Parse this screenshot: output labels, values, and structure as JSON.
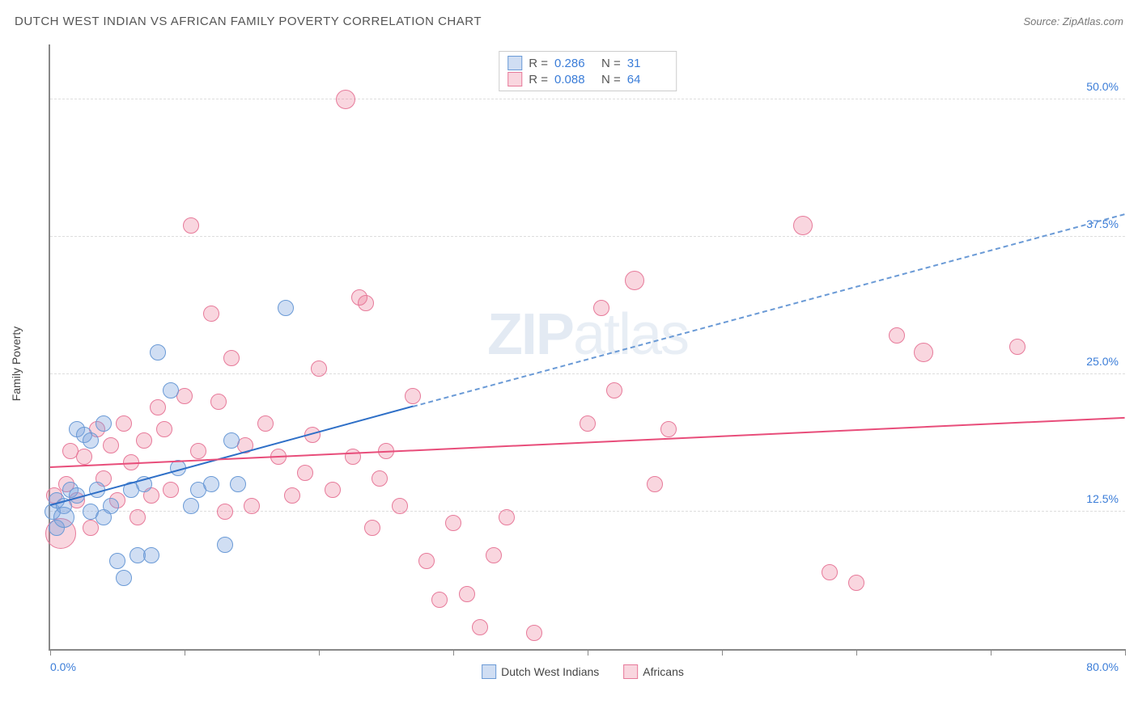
{
  "header": {
    "title": "DUTCH WEST INDIAN VS AFRICAN FAMILY POVERTY CORRELATION CHART",
    "source_prefix": "Source: ",
    "source": "ZipAtlas.com"
  },
  "watermark": {
    "zip": "ZIP",
    "atlas": "atlas"
  },
  "chart": {
    "type": "scatter",
    "ylabel": "Family Poverty",
    "xlim": [
      0,
      80
    ],
    "ylim": [
      0,
      55
    ],
    "xtick_positions": [
      0,
      10,
      20,
      30,
      40,
      50,
      60,
      70,
      80
    ],
    "xtick_labels": {
      "left": "0.0%",
      "right": "80.0%"
    },
    "ytick_positions": [
      12.5,
      25.0,
      37.5,
      50.0
    ],
    "ytick_labels": [
      "12.5%",
      "25.0%",
      "37.5%",
      "50.0%"
    ],
    "grid_color": "#dddddd",
    "axis_color": "#888888",
    "background_color": "#ffffff",
    "tick_label_color": "#3b7dd8",
    "ylabel_color": "#444444"
  },
  "series": [
    {
      "name": "Dutch West Indians",
      "fill": "rgba(120,160,220,0.35)",
      "stroke": "#6a9ad6",
      "trend_color": "#2e6fc7",
      "trend_dash_color": "#6a9ad6",
      "R": "0.286",
      "N": "31",
      "marker_radius": 9,
      "trend": {
        "x1": 0,
        "y1": 13.0,
        "x2_solid": 27,
        "y2_solid": 22.0,
        "x2": 80,
        "y2": 39.5
      },
      "points": [
        {
          "x": 0.2,
          "y": 12.5,
          "r": 9
        },
        {
          "x": 0.5,
          "y": 13.5,
          "r": 9
        },
        {
          "x": 0.5,
          "y": 11.0,
          "r": 9
        },
        {
          "x": 1.0,
          "y": 13.0,
          "r": 9
        },
        {
          "x": 1.0,
          "y": 12.0,
          "r": 12
        },
        {
          "x": 1.5,
          "y": 14.5,
          "r": 9
        },
        {
          "x": 2.0,
          "y": 20.0,
          "r": 9
        },
        {
          "x": 2.5,
          "y": 19.5,
          "r": 9
        },
        {
          "x": 2.0,
          "y": 14.0,
          "r": 9
        },
        {
          "x": 3.0,
          "y": 12.5,
          "r": 9
        },
        {
          "x": 3.0,
          "y": 19.0,
          "r": 9
        },
        {
          "x": 3.5,
          "y": 14.5,
          "r": 9
        },
        {
          "x": 4.0,
          "y": 20.5,
          "r": 9
        },
        {
          "x": 4.5,
          "y": 13.0,
          "r": 9
        },
        {
          "x": 5.0,
          "y": 8.0,
          "r": 9
        },
        {
          "x": 5.5,
          "y": 6.5,
          "r": 9
        },
        {
          "x": 6.0,
          "y": 14.5,
          "r": 9
        },
        {
          "x": 6.5,
          "y": 8.5,
          "r": 9
        },
        {
          "x": 7.0,
          "y": 15.0,
          "r": 9
        },
        {
          "x": 7.5,
          "y": 8.5,
          "r": 9
        },
        {
          "x": 8.0,
          "y": 27.0,
          "r": 9
        },
        {
          "x": 9.0,
          "y": 23.5,
          "r": 9
        },
        {
          "x": 9.5,
          "y": 16.5,
          "r": 9
        },
        {
          "x": 11.0,
          "y": 14.5,
          "r": 9
        },
        {
          "x": 12.0,
          "y": 15.0,
          "r": 9
        },
        {
          "x": 13.0,
          "y": 9.5,
          "r": 9
        },
        {
          "x": 13.5,
          "y": 19.0,
          "r": 9
        },
        {
          "x": 14.0,
          "y": 15.0,
          "r": 9
        },
        {
          "x": 17.5,
          "y": 31.0,
          "r": 9
        },
        {
          "x": 10.5,
          "y": 13.0,
          "r": 9
        },
        {
          "x": 4.0,
          "y": 12.0,
          "r": 9
        }
      ]
    },
    {
      "name": "Africans",
      "fill": "rgba(235,120,150,0.3)",
      "stroke": "#e77a9a",
      "trend_color": "#e84d7a",
      "R": "0.088",
      "N": "64",
      "marker_radius": 9,
      "trend": {
        "x1": 0,
        "y1": 16.5,
        "x2_solid": 80,
        "y2_solid": 21.0,
        "x2": 80,
        "y2": 21.0
      },
      "points": [
        {
          "x": 0.3,
          "y": 14.0,
          "r": 9
        },
        {
          "x": 0.8,
          "y": 10.5,
          "r": 18
        },
        {
          "x": 1.2,
          "y": 15.0,
          "r": 9
        },
        {
          "x": 1.5,
          "y": 18.0,
          "r": 9
        },
        {
          "x": 2.0,
          "y": 13.5,
          "r": 9
        },
        {
          "x": 2.5,
          "y": 17.5,
          "r": 9
        },
        {
          "x": 3.0,
          "y": 11.0,
          "r": 9
        },
        {
          "x": 3.5,
          "y": 20.0,
          "r": 9
        },
        {
          "x": 4.0,
          "y": 15.5,
          "r": 9
        },
        {
          "x": 4.5,
          "y": 18.5,
          "r": 9
        },
        {
          "x": 5.0,
          "y": 13.5,
          "r": 9
        },
        {
          "x": 5.5,
          "y": 20.5,
          "r": 9
        },
        {
          "x": 6.0,
          "y": 17.0,
          "r": 9
        },
        {
          "x": 6.5,
          "y": 12.0,
          "r": 9
        },
        {
          "x": 7.0,
          "y": 19.0,
          "r": 9
        },
        {
          "x": 7.5,
          "y": 14.0,
          "r": 9
        },
        {
          "x": 8.0,
          "y": 22.0,
          "r": 9
        },
        {
          "x": 8.5,
          "y": 20.0,
          "r": 9
        },
        {
          "x": 9.0,
          "y": 14.5,
          "r": 9
        },
        {
          "x": 10.0,
          "y": 23.0,
          "r": 9
        },
        {
          "x": 10.5,
          "y": 38.5,
          "r": 9
        },
        {
          "x": 11.0,
          "y": 18.0,
          "r": 9
        },
        {
          "x": 12.0,
          "y": 30.5,
          "r": 9
        },
        {
          "x": 13.0,
          "y": 12.5,
          "r": 9
        },
        {
          "x": 13.5,
          "y": 26.5,
          "r": 9
        },
        {
          "x": 14.5,
          "y": 18.5,
          "r": 9
        },
        {
          "x": 15.0,
          "y": 13.0,
          "r": 9
        },
        {
          "x": 16.0,
          "y": 20.5,
          "r": 9
        },
        {
          "x": 17.0,
          "y": 17.5,
          "r": 9
        },
        {
          "x": 18.0,
          "y": 14.0,
          "r": 9
        },
        {
          "x": 19.0,
          "y": 16.0,
          "r": 9
        },
        {
          "x": 19.5,
          "y": 19.5,
          "r": 9
        },
        {
          "x": 20.0,
          "y": 25.5,
          "r": 9
        },
        {
          "x": 21.0,
          "y": 14.5,
          "r": 9
        },
        {
          "x": 22.0,
          "y": 50.0,
          "r": 11
        },
        {
          "x": 22.5,
          "y": 17.5,
          "r": 9
        },
        {
          "x": 23.0,
          "y": 32.0,
          "r": 9
        },
        {
          "x": 23.5,
          "y": 31.5,
          "r": 9
        },
        {
          "x": 24.0,
          "y": 11.0,
          "r": 9
        },
        {
          "x": 24.5,
          "y": 15.5,
          "r": 9
        },
        {
          "x": 25.0,
          "y": 18.0,
          "r": 9
        },
        {
          "x": 26.0,
          "y": 13.0,
          "r": 9
        },
        {
          "x": 27.0,
          "y": 23.0,
          "r": 9
        },
        {
          "x": 28.0,
          "y": 8.0,
          "r": 9
        },
        {
          "x": 29.0,
          "y": 4.5,
          "r": 9
        },
        {
          "x": 30.0,
          "y": 11.5,
          "r": 9
        },
        {
          "x": 31.0,
          "y": 5.0,
          "r": 9
        },
        {
          "x": 32.0,
          "y": 2.0,
          "r": 9
        },
        {
          "x": 33.0,
          "y": 8.5,
          "r": 9
        },
        {
          "x": 34.0,
          "y": 12.0,
          "r": 9
        },
        {
          "x": 36.0,
          "y": 1.5,
          "r": 9
        },
        {
          "x": 40.0,
          "y": 20.5,
          "r": 9
        },
        {
          "x": 41.0,
          "y": 31.0,
          "r": 9
        },
        {
          "x": 42.0,
          "y": 23.5,
          "r": 9
        },
        {
          "x": 43.5,
          "y": 33.5,
          "r": 11
        },
        {
          "x": 45.0,
          "y": 15.0,
          "r": 9
        },
        {
          "x": 46.0,
          "y": 20.0,
          "r": 9
        },
        {
          "x": 56.0,
          "y": 38.5,
          "r": 11
        },
        {
          "x": 58.0,
          "y": 7.0,
          "r": 9
        },
        {
          "x": 60.0,
          "y": 6.0,
          "r": 9
        },
        {
          "x": 63.0,
          "y": 28.5,
          "r": 9
        },
        {
          "x": 65.0,
          "y": 27.0,
          "r": 11
        },
        {
          "x": 72.0,
          "y": 27.5,
          "r": 9
        },
        {
          "x": 12.5,
          "y": 22.5,
          "r": 9
        }
      ]
    }
  ],
  "stats_labels": {
    "R": "R =",
    "N": "N ="
  },
  "legend": {
    "s1": "Dutch West Indians",
    "s2": "Africans"
  }
}
